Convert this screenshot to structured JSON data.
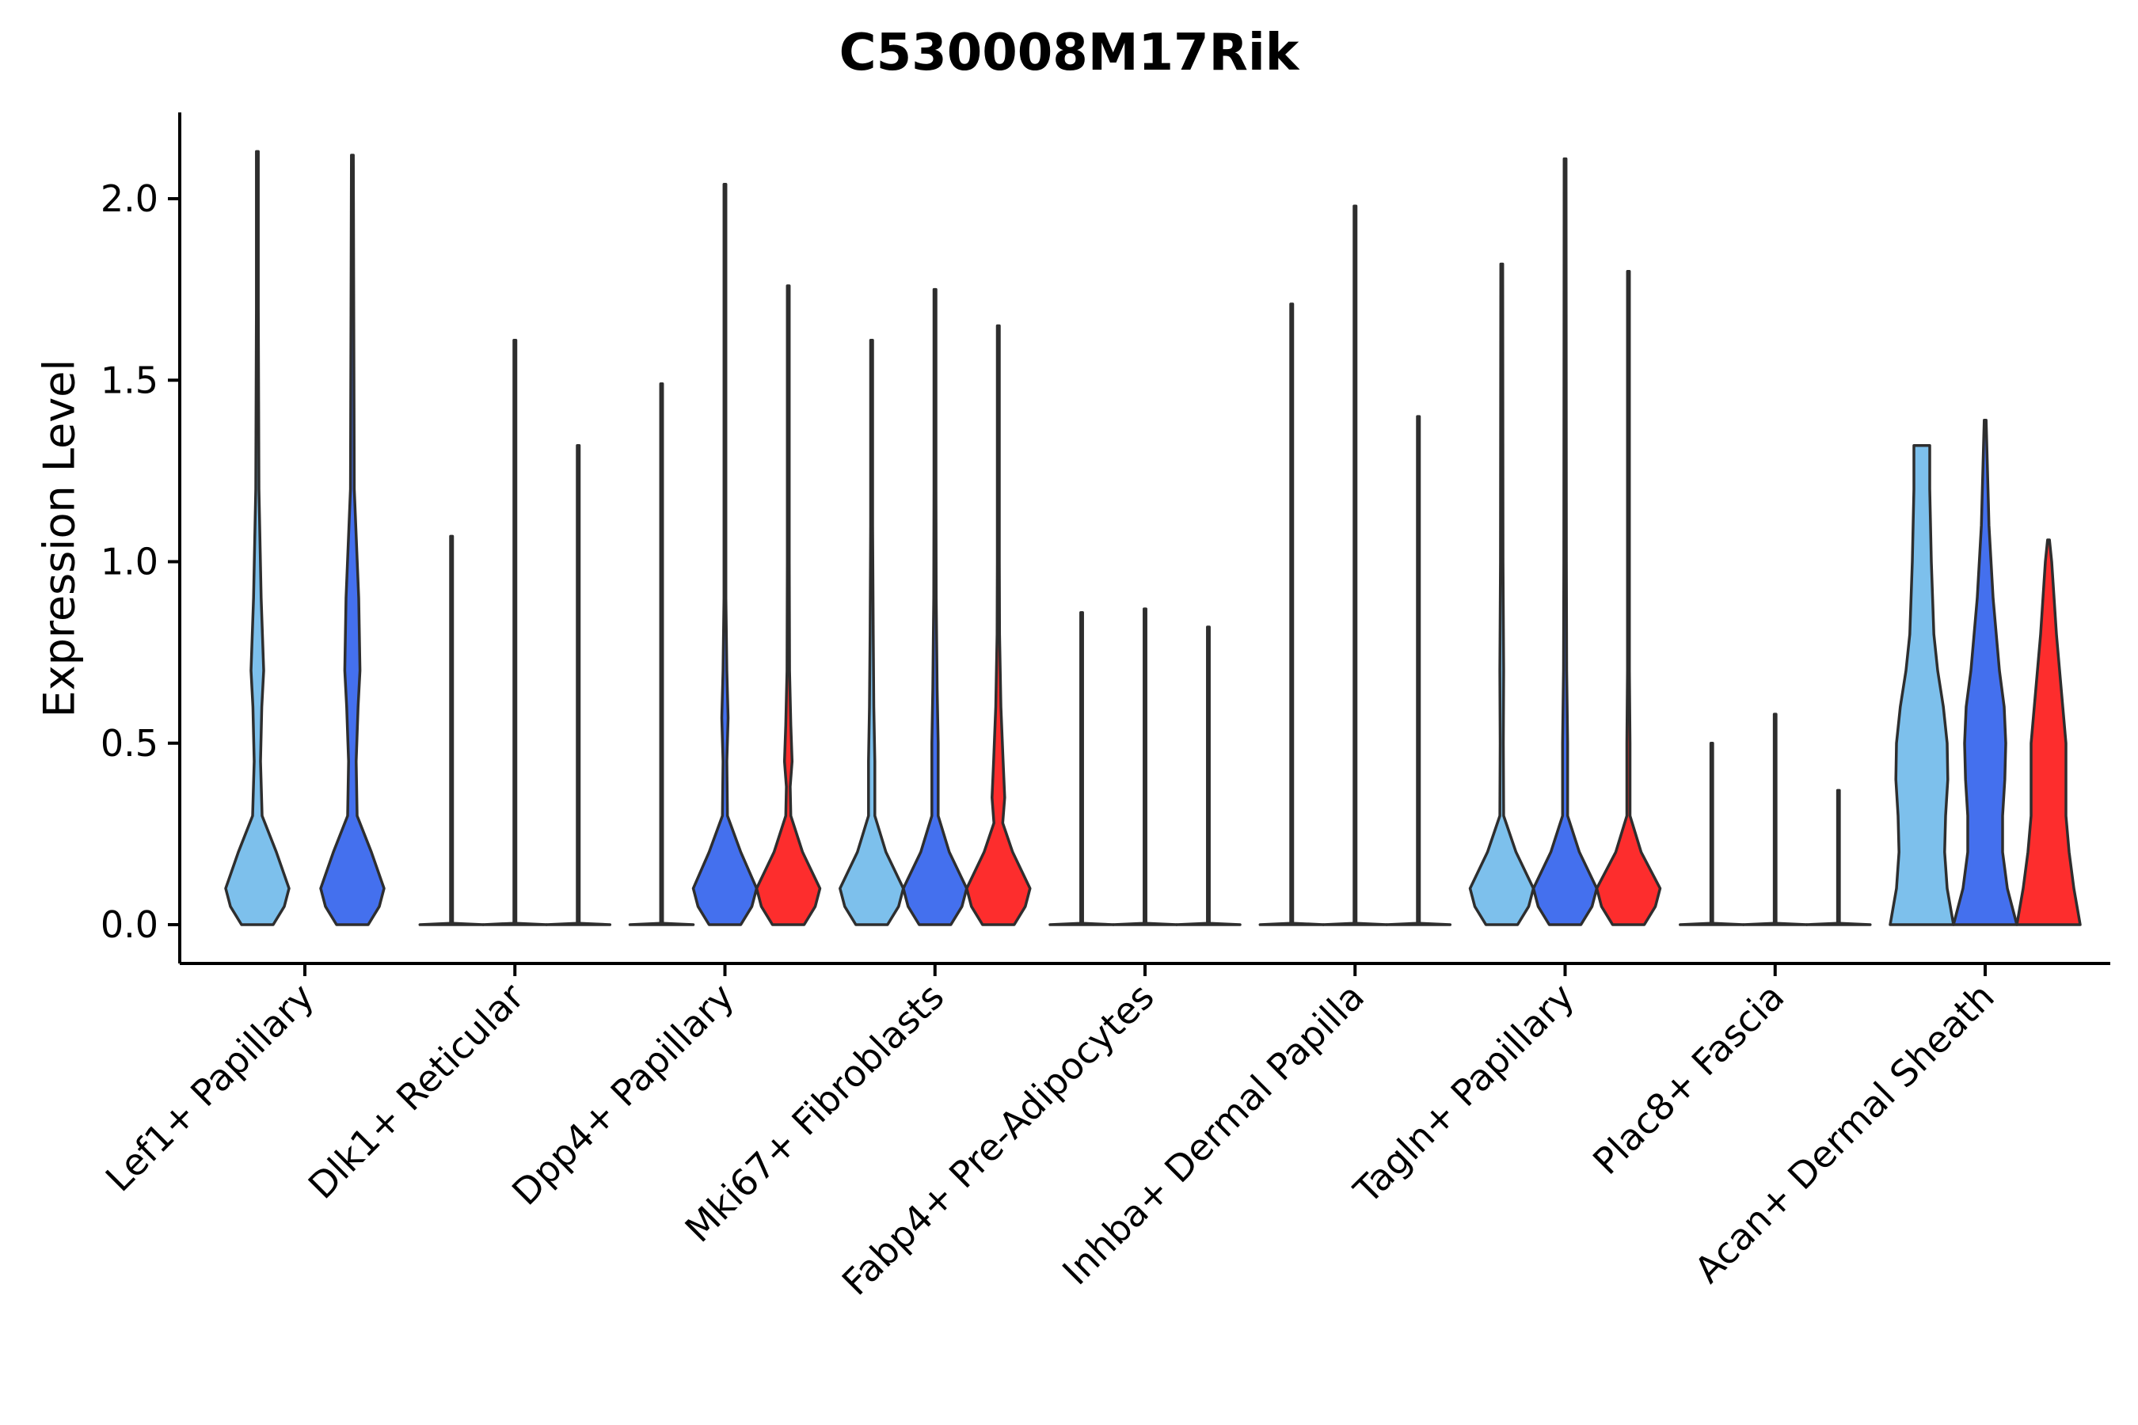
{
  "chart_data": {
    "type": "violin",
    "title": "C530008M17Rik",
    "xlabel": "",
    "ylabel": "Expression Level",
    "ylim": [
      -0.11,
      2.24
    ],
    "yticks": [
      "0.0",
      "0.5",
      "1.0",
      "1.5",
      "2.0"
    ],
    "ytick_values": [
      0.0,
      0.5,
      1.0,
      1.5,
      2.0
    ],
    "series_colors": {
      "light": "#7dc0ec",
      "blue": "#4470ee",
      "red": "#fd2d2d"
    },
    "categories": [
      "Lef1+ Papillary",
      "Dlk1+ Reticular",
      "Dpp4+ Papillary",
      "Mki67+ Fibroblasts",
      "Fabp4+ Pre-Adipocytes",
      "Inhba+ Dermal Papilla",
      "Tagln+ Papillary",
      "Plac8+ Fascia",
      "Acan+ Dermal Sheath"
    ],
    "violins": [
      {
        "category": 0,
        "color": "light",
        "max": 2.13,
        "profile": [
          [
            0,
            0.5
          ],
          [
            0.05,
            0.85
          ],
          [
            0.1,
            1.0
          ],
          [
            0.2,
            0.6
          ],
          [
            0.3,
            0.15
          ],
          [
            0.45,
            0.1
          ],
          [
            0.6,
            0.14
          ],
          [
            0.7,
            0.2
          ],
          [
            0.9,
            0.12
          ],
          [
            1.2,
            0.05
          ],
          [
            1.7,
            0.03
          ],
          [
            2.13,
            0
          ]
        ]
      },
      {
        "category": 0,
        "color": "blue",
        "max": 2.12,
        "profile": [
          [
            0,
            0.5
          ],
          [
            0.05,
            0.85
          ],
          [
            0.1,
            1.0
          ],
          [
            0.2,
            0.6
          ],
          [
            0.3,
            0.15
          ],
          [
            0.45,
            0.12
          ],
          [
            0.6,
            0.18
          ],
          [
            0.7,
            0.24
          ],
          [
            0.9,
            0.2
          ],
          [
            1.2,
            0.06
          ],
          [
            1.8,
            0.04
          ],
          [
            2.12,
            0
          ]
        ]
      },
      {
        "category": 1,
        "color": "light",
        "max": 1.07,
        "profile": [
          [
            0,
            1
          ],
          [
            0.004,
            0.02
          ],
          [
            1.07,
            0
          ]
        ]
      },
      {
        "category": 1,
        "color": "blue",
        "max": 1.61,
        "profile": [
          [
            0,
            1
          ],
          [
            0.004,
            0.02
          ],
          [
            1.61,
            0
          ]
        ]
      },
      {
        "category": 1,
        "color": "red",
        "max": 1.32,
        "profile": [
          [
            0,
            1
          ],
          [
            0.004,
            0.02
          ],
          [
            1.32,
            0
          ]
        ]
      },
      {
        "category": 2,
        "color": "light",
        "max": 1.49,
        "profile": [
          [
            0,
            1
          ],
          [
            0.004,
            0.02
          ],
          [
            1.49,
            0
          ]
        ]
      },
      {
        "category": 2,
        "color": "blue",
        "max": 2.04,
        "profile": [
          [
            0,
            0.5
          ],
          [
            0.05,
            0.85
          ],
          [
            0.1,
            1.0
          ],
          [
            0.2,
            0.5
          ],
          [
            0.3,
            0.08
          ],
          [
            0.45,
            0.06
          ],
          [
            0.57,
            0.1
          ],
          [
            0.7,
            0.06
          ],
          [
            0.9,
            0.03
          ],
          [
            1.3,
            0.02
          ],
          [
            2.04,
            0
          ]
        ]
      },
      {
        "category": 2,
        "color": "red",
        "max": 1.76,
        "profile": [
          [
            0,
            0.5
          ],
          [
            0.05,
            0.85
          ],
          [
            0.1,
            1.0
          ],
          [
            0.2,
            0.45
          ],
          [
            0.3,
            0.08
          ],
          [
            0.38,
            0.06
          ],
          [
            0.45,
            0.12
          ],
          [
            0.55,
            0.08
          ],
          [
            0.7,
            0.04
          ],
          [
            1.0,
            0.02
          ],
          [
            1.76,
            0
          ]
        ]
      },
      {
        "category": 3,
        "color": "light",
        "max": 1.61,
        "profile": [
          [
            0,
            0.5
          ],
          [
            0.05,
            0.85
          ],
          [
            0.1,
            1.0
          ],
          [
            0.2,
            0.45
          ],
          [
            0.3,
            0.1
          ],
          [
            0.45,
            0.1
          ],
          [
            0.6,
            0.07
          ],
          [
            0.8,
            0.05
          ],
          [
            1.1,
            0.03
          ],
          [
            1.61,
            0
          ]
        ]
      },
      {
        "category": 3,
        "color": "blue",
        "max": 1.75,
        "profile": [
          [
            0,
            0.5
          ],
          [
            0.05,
            0.85
          ],
          [
            0.1,
            1.0
          ],
          [
            0.2,
            0.45
          ],
          [
            0.3,
            0.1
          ],
          [
            0.5,
            0.1
          ],
          [
            0.65,
            0.07
          ],
          [
            0.9,
            0.04
          ],
          [
            1.2,
            0.02
          ],
          [
            1.75,
            0
          ]
        ]
      },
      {
        "category": 3,
        "color": "red",
        "max": 1.65,
        "profile": [
          [
            0,
            0.5
          ],
          [
            0.05,
            0.85
          ],
          [
            0.1,
            1.0
          ],
          [
            0.2,
            0.45
          ],
          [
            0.28,
            0.14
          ],
          [
            0.35,
            0.2
          ],
          [
            0.45,
            0.15
          ],
          [
            0.6,
            0.08
          ],
          [
            0.8,
            0.04
          ],
          [
            1.0,
            0.02
          ],
          [
            1.65,
            0
          ]
        ]
      },
      {
        "category": 4,
        "color": "light",
        "max": 0.86,
        "profile": [
          [
            0,
            1
          ],
          [
            0.004,
            0.02
          ],
          [
            0.86,
            0
          ]
        ]
      },
      {
        "category": 4,
        "color": "blue",
        "max": 0.87,
        "profile": [
          [
            0,
            1
          ],
          [
            0.004,
            0.02
          ],
          [
            0.87,
            0
          ]
        ]
      },
      {
        "category": 4,
        "color": "red",
        "max": 0.82,
        "profile": [
          [
            0,
            1
          ],
          [
            0.004,
            0.02
          ],
          [
            0.82,
            0
          ]
        ]
      },
      {
        "category": 5,
        "color": "light",
        "max": 1.71,
        "profile": [
          [
            0,
            1
          ],
          [
            0.004,
            0.02
          ],
          [
            1.71,
            0
          ]
        ]
      },
      {
        "category": 5,
        "color": "blue",
        "max": 1.98,
        "profile": [
          [
            0,
            1
          ],
          [
            0.004,
            0.02
          ],
          [
            1.98,
            0
          ]
        ]
      },
      {
        "category": 5,
        "color": "red",
        "max": 1.4,
        "profile": [
          [
            0,
            1
          ],
          [
            0.004,
            0.02
          ],
          [
            1.4,
            0
          ]
        ]
      },
      {
        "category": 6,
        "color": "light",
        "max": 1.82,
        "profile": [
          [
            0,
            0.5
          ],
          [
            0.05,
            0.85
          ],
          [
            0.1,
            1.0
          ],
          [
            0.2,
            0.45
          ],
          [
            0.3,
            0.06
          ],
          [
            0.5,
            0.05
          ],
          [
            0.7,
            0.06
          ],
          [
            1.0,
            0.04
          ],
          [
            1.82,
            0
          ]
        ]
      },
      {
        "category": 6,
        "color": "blue",
        "max": 2.11,
        "profile": [
          [
            0,
            0.5
          ],
          [
            0.05,
            0.85
          ],
          [
            0.1,
            1.0
          ],
          [
            0.2,
            0.45
          ],
          [
            0.3,
            0.08
          ],
          [
            0.5,
            0.08
          ],
          [
            0.7,
            0.05
          ],
          [
            1.0,
            0.04
          ],
          [
            2.11,
            0
          ]
        ]
      },
      {
        "category": 6,
        "color": "red",
        "max": 1.8,
        "profile": [
          [
            0,
            0.5
          ],
          [
            0.05,
            0.85
          ],
          [
            0.1,
            1.0
          ],
          [
            0.2,
            0.4
          ],
          [
            0.3,
            0.05
          ],
          [
            0.5,
            0.05
          ],
          [
            0.7,
            0.03
          ],
          [
            1.0,
            0.02
          ],
          [
            1.8,
            0
          ]
        ]
      },
      {
        "category": 7,
        "color": "light",
        "max": 0.5,
        "profile": [
          [
            0,
            1
          ],
          [
            0.004,
            0.02
          ],
          [
            0.5,
            0
          ]
        ]
      },
      {
        "category": 7,
        "color": "blue",
        "max": 0.58,
        "profile": [
          [
            0,
            1
          ],
          [
            0.004,
            0.02
          ],
          [
            0.58,
            0
          ]
        ]
      },
      {
        "category": 7,
        "color": "red",
        "max": 0.37,
        "profile": [
          [
            0,
            1
          ],
          [
            0.004,
            0.02
          ],
          [
            0.37,
            0
          ]
        ]
      },
      {
        "category": 8,
        "color": "light",
        "max": 1.32,
        "profile": [
          [
            0,
            1
          ],
          [
            0.05,
            0.9
          ],
          [
            0.1,
            0.8
          ],
          [
            0.2,
            0.72
          ],
          [
            0.3,
            0.75
          ],
          [
            0.4,
            0.82
          ],
          [
            0.5,
            0.8
          ],
          [
            0.6,
            0.68
          ],
          [
            0.7,
            0.5
          ],
          [
            0.8,
            0.38
          ],
          [
            1.0,
            0.3
          ],
          [
            1.2,
            0.25
          ],
          [
            1.32,
            0.25
          ]
        ]
      },
      {
        "category": 8,
        "color": "blue",
        "max": 1.39,
        "profile": [
          [
            0,
            1
          ],
          [
            0.05,
            0.85
          ],
          [
            0.1,
            0.7
          ],
          [
            0.2,
            0.55
          ],
          [
            0.3,
            0.55
          ],
          [
            0.4,
            0.62
          ],
          [
            0.5,
            0.65
          ],
          [
            0.6,
            0.6
          ],
          [
            0.7,
            0.45
          ],
          [
            0.9,
            0.25
          ],
          [
            1.1,
            0.12
          ],
          [
            1.39,
            0
          ]
        ]
      },
      {
        "category": 8,
        "color": "red",
        "max": 1.06,
        "profile": [
          [
            0,
            1
          ],
          [
            0.05,
            0.9
          ],
          [
            0.1,
            0.8
          ],
          [
            0.2,
            0.65
          ],
          [
            0.3,
            0.55
          ],
          [
            0.4,
            0.55
          ],
          [
            0.5,
            0.55
          ],
          [
            0.6,
            0.45
          ],
          [
            0.8,
            0.25
          ],
          [
            1.0,
            0.1
          ],
          [
            1.06,
            0
          ]
        ]
      }
    ]
  }
}
